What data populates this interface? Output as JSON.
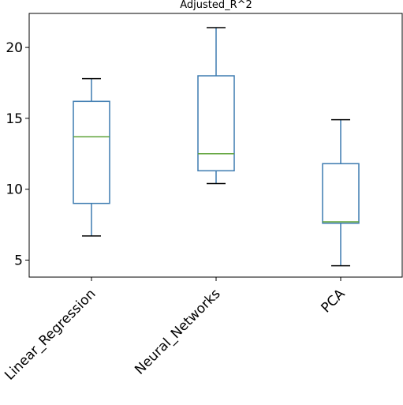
{
  "chart_data": {
    "type": "box",
    "title": "Adjusted_R^2",
    "xlabel": "",
    "ylabel": "",
    "ylim": [
      3.8,
      22.4
    ],
    "yticks": [
      5,
      10,
      15,
      20
    ],
    "grid": false,
    "categories": [
      "Linear_Regression",
      "Neural_Networks",
      "PCA"
    ],
    "boxes": [
      {
        "category": "Linear_Regression",
        "whisker_low": 6.7,
        "q1": 9.0,
        "median": 13.7,
        "q3": 16.2,
        "whisker_high": 17.8
      },
      {
        "category": "Neural_Networks",
        "whisker_low": 10.4,
        "q1": 11.3,
        "median": 12.5,
        "q3": 18.0,
        "whisker_high": 21.4
      },
      {
        "category": "PCA",
        "whisker_low": 4.6,
        "q1": 7.6,
        "median": 7.7,
        "q3": 11.8,
        "whisker_high": 14.9
      }
    ],
    "colors": {
      "box": "#3d7bb0",
      "median": "#5fa33a",
      "axis": "#000000"
    }
  }
}
